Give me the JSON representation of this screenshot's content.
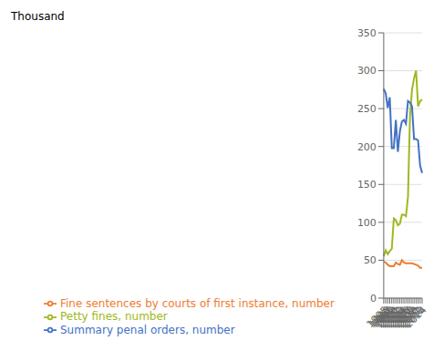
{
  "chart_data": {
    "type": "line",
    "ylabel": "Thousand",
    "categories": [
      "1995",
      "1996",
      "1997",
      "1998",
      "1999",
      "2000",
      "2001",
      "2002",
      "2003",
      "2004",
      "2005",
      "2006",
      "2007",
      "2008",
      "2009",
      "2010",
      "2011",
      "2012",
      "2013",
      "2014"
    ],
    "series": [
      {
        "name": "Petty fines, number",
        "color": "#a0b820",
        "values": [
          55,
          63,
          58,
          62,
          65,
          105,
          103,
          96,
          98,
          110,
          110,
          108,
          133,
          240,
          275,
          290,
          300,
          253,
          260,
          262
        ]
      },
      {
        "name": "Summary penal orders, number",
        "color": "#4472c4",
        "values": [
          276,
          270,
          251,
          265,
          198,
          198,
          235,
          193,
          220,
          233,
          235,
          230,
          260,
          258,
          253,
          210,
          210,
          208,
          175,
          165
        ]
      },
      {
        "name": "Fine sentences by courts of first instance, number",
        "color": "#ed7d31",
        "values": [
          48,
          47,
          44,
          42,
          42,
          42,
          47,
          45,
          44,
          50,
          47,
          46,
          46,
          46,
          46,
          45,
          44,
          43,
          40,
          40
        ]
      }
    ],
    "ylim": [
      0,
      350
    ],
    "yticks": [
      0,
      50,
      100,
      150,
      200,
      250,
      300,
      350
    ],
    "grid": true,
    "legend": "bottom"
  }
}
